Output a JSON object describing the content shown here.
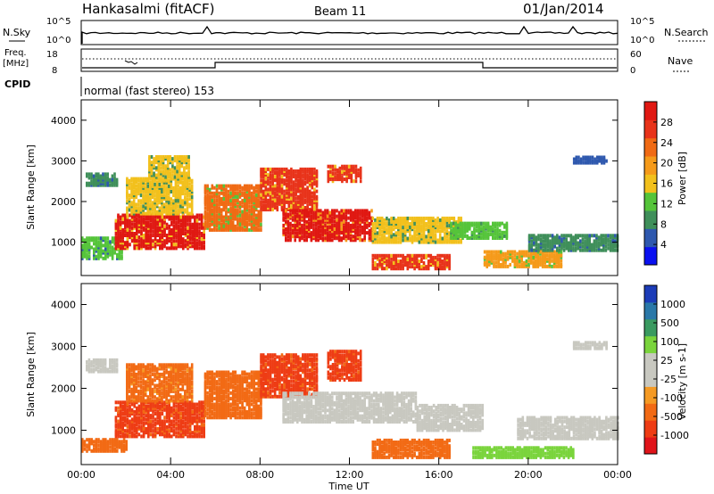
{
  "header": {
    "station": "Hankasalmi (fitACF)",
    "beam": "Beam 11",
    "date": "01/Jan/2014"
  },
  "top_panels": {
    "nsky_label": "N.Sky",
    "nsearch_label": "N.Search",
    "noise_tick_high": "10^5",
    "noise_tick_low": "10^0",
    "freq_label": "Freq.",
    "freq_unit": "[MHz]",
    "freq_tick_high": "18",
    "freq_tick_low": "8",
    "nave_label": "Nave",
    "nave_tick_high": "60",
    "nave_tick_low": "0",
    "cpid_label": "CPID",
    "cpid_text": "normal (fast stereo) 153"
  },
  "colors": {
    "power_scale": [
      "#0a10f0",
      "#2e58ae",
      "#3f8f5a",
      "#55c43a",
      "#f2c01c",
      "#f59a1a",
      "#f06a14",
      "#e8331a",
      "#e01812"
    ],
    "velocity_scale": [
      "#e0141a",
      "#ee3c14",
      "#f26a14",
      "#f59a24",
      "#c8c8c0",
      "#c8c8c0",
      "#7ad43c",
      "#3a9a60",
      "#2a78a8",
      "#1c3cb8"
    ]
  },
  "chart_data": [
    {
      "type": "heatmap",
      "panel": "power",
      "xlabel": "",
      "ylabel": "Slant Range [km]",
      "x_ticks": [
        "00:00",
        "04:00",
        "08:00",
        "12:00",
        "16:00",
        "20:00",
        "00:00"
      ],
      "y_ticks": [
        "1000",
        "2000",
        "3000",
        "4000"
      ],
      "xlim_hours": [
        0,
        24
      ],
      "ylim_km": [
        180,
        4500
      ],
      "colorbar_title": "Power [dB]",
      "colorbar_ticks": [
        "28",
        "24",
        "20",
        "16",
        "12",
        "8",
        "4"
      ],
      "clim": [
        0,
        30
      ],
      "echo_regions": [
        {
          "t0": 0.0,
          "t1": 1.8,
          "r0": 600,
          "r1": 1100,
          "value": 10
        },
        {
          "t0": 0.2,
          "t1": 1.6,
          "r0": 2400,
          "r1": 2700,
          "value": 8
        },
        {
          "t0": 1.5,
          "t1": 5.5,
          "r0": 850,
          "r1": 1700,
          "value": 27
        },
        {
          "t0": 2.0,
          "t1": 5.0,
          "r0": 1700,
          "r1": 2600,
          "value": 16
        },
        {
          "t0": 3.0,
          "t1": 4.8,
          "r0": 2600,
          "r1": 3100,
          "value": 14
        },
        {
          "t0": 5.5,
          "t1": 8.0,
          "r0": 1300,
          "r1": 2400,
          "value": 22
        },
        {
          "t0": 8.0,
          "t1": 10.5,
          "r0": 1800,
          "r1": 2800,
          "value": 26
        },
        {
          "t0": 9.0,
          "t1": 13.0,
          "r0": 1050,
          "r1": 1800,
          "value": 28
        },
        {
          "t0": 11.0,
          "t1": 12.5,
          "r0": 2500,
          "r1": 2900,
          "value": 24
        },
        {
          "t0": 13.0,
          "t1": 17.0,
          "r0": 1000,
          "r1": 1600,
          "value": 14
        },
        {
          "t0": 13.0,
          "t1": 16.5,
          "r0": 350,
          "r1": 700,
          "value": 24
        },
        {
          "t0": 16.5,
          "t1": 19.0,
          "r0": 1100,
          "r1": 1500,
          "value": 12
        },
        {
          "t0": 18.0,
          "t1": 21.5,
          "r0": 400,
          "r1": 800,
          "value": 18
        },
        {
          "t0": 20.0,
          "t1": 24.0,
          "r0": 800,
          "r1": 1200,
          "value": 8
        },
        {
          "t0": 22.0,
          "t1": 23.5,
          "r0": 2950,
          "r1": 3100,
          "value": 6
        }
      ]
    },
    {
      "type": "heatmap",
      "panel": "velocity",
      "xlabel": "Time UT",
      "ylabel": "Slant Range [km]",
      "x_ticks": [
        "00:00",
        "04:00",
        "08:00",
        "12:00",
        "16:00",
        "20:00",
        "00:00"
      ],
      "y_ticks": [
        "1000",
        "2000",
        "3000",
        "4000"
      ],
      "xlim_hours": [
        0,
        24
      ],
      "ylim_km": [
        180,
        4500
      ],
      "colorbar_title": "Velocity [m s-1]",
      "colorbar_ticks": [
        "1000",
        "500",
        "100",
        "25",
        "-25",
        "-100",
        "-500",
        "-1000"
      ],
      "echo_regions": [
        {
          "t0": 0.0,
          "t1": 2.0,
          "r0": 500,
          "r1": 800,
          "value": -300
        },
        {
          "t0": 0.2,
          "t1": 1.6,
          "r0": 2400,
          "r1": 2700,
          "value": 0
        },
        {
          "t0": 1.5,
          "t1": 5.5,
          "r0": 850,
          "r1": 1700,
          "value": -400
        },
        {
          "t0": 2.0,
          "t1": 5.0,
          "r0": 1700,
          "r1": 2600,
          "value": -200
        },
        {
          "t0": 5.5,
          "t1": 8.0,
          "r0": 1300,
          "r1": 2400,
          "value": -300
        },
        {
          "t0": 8.0,
          "t1": 10.5,
          "r0": 1800,
          "r1": 2800,
          "value": -400
        },
        {
          "t0": 9.0,
          "t1": 15.0,
          "r0": 1200,
          "r1": 1900,
          "value": 0
        },
        {
          "t0": 11.0,
          "t1": 12.5,
          "r0": 2200,
          "r1": 2900,
          "value": -400
        },
        {
          "t0": 13.0,
          "t1": 16.5,
          "r0": 350,
          "r1": 800,
          "value": -300
        },
        {
          "t0": 15.0,
          "t1": 18.0,
          "r0": 1000,
          "r1": 1600,
          "value": 0
        },
        {
          "t0": 17.5,
          "t1": 22.0,
          "r0": 350,
          "r1": 600,
          "value": 150
        },
        {
          "t0": 19.5,
          "t1": 24.0,
          "r0": 800,
          "r1": 1300,
          "value": 0
        },
        {
          "t0": 22.0,
          "t1": 23.5,
          "r0": 2950,
          "r1": 3100,
          "value": 0
        }
      ]
    }
  ]
}
